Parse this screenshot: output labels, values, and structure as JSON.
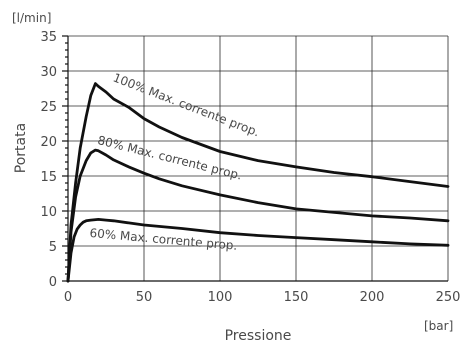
{
  "chart_data": {
    "type": "line",
    "x_unit": "[bar]",
    "y_unit": "[l/min]",
    "xlabel": "Pressione",
    "ylabel": "Portata",
    "xlim": [
      0,
      250
    ],
    "ylim": [
      0,
      35
    ],
    "x_ticks": [
      "0",
      "50",
      "100",
      "150",
      "200",
      "250"
    ],
    "y_ticks": [
      "0",
      "5",
      "10",
      "15",
      "20",
      "25",
      "30",
      "35"
    ],
    "grid": true,
    "line_color": "#111111",
    "series": [
      {
        "name": "100% Max. corrente prop.",
        "x": [
          0,
          2,
          5,
          8,
          12,
          15,
          18,
          20,
          25,
          30,
          40,
          50,
          60,
          75,
          100,
          125,
          150,
          175,
          200,
          225,
          250
        ],
        "y": [
          0,
          8,
          14,
          19,
          23.5,
          26.5,
          28.2,
          27.8,
          27,
          26,
          24.8,
          23.2,
          22,
          20.5,
          18.5,
          17.2,
          16.3,
          15.5,
          14.9,
          14.2,
          13.5
        ]
      },
      {
        "name": "80% Max. corrente prop.",
        "x": [
          0,
          2,
          5,
          8,
          12,
          15,
          18,
          20,
          25,
          30,
          40,
          50,
          60,
          75,
          100,
          125,
          150,
          175,
          200,
          225,
          250
        ],
        "y": [
          0,
          7,
          12,
          15,
          17.2,
          18.3,
          18.7,
          18.6,
          18,
          17.3,
          16.3,
          15.4,
          14.6,
          13.6,
          12.3,
          11.2,
          10.3,
          9.8,
          9.3,
          9,
          8.6
        ]
      },
      {
        "name": "60% Max. corrente prop.",
        "x": [
          0,
          2,
          4,
          6,
          8,
          10,
          12,
          15,
          20,
          25,
          30,
          40,
          50,
          75,
          100,
          125,
          150,
          175,
          200,
          225,
          250
        ],
        "y": [
          0,
          4,
          6.3,
          7.4,
          8,
          8.4,
          8.6,
          8.7,
          8.8,
          8.7,
          8.6,
          8.3,
          8,
          7.5,
          6.9,
          6.5,
          6.2,
          5.9,
          5.6,
          5.3,
          5.1
        ]
      }
    ]
  }
}
